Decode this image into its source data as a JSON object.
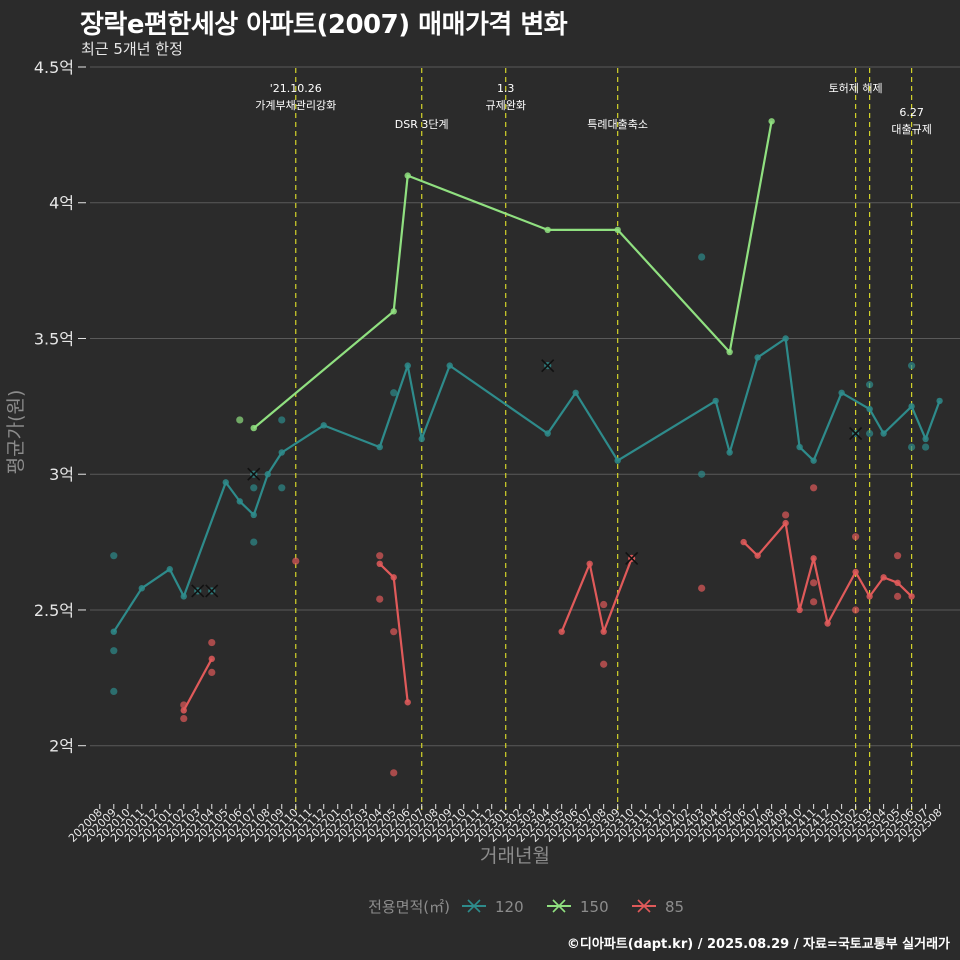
{
  "header": {
    "title": "장락e편한세상 아파트(2007) 매매가격 변화",
    "subtitle": "최근 5개년 한정"
  },
  "caption": "©디아파트(dapt.kr) / 2025.08.29 / 자료=국토교통부 실거래가",
  "colors": {
    "background": "#2b2b2b",
    "grid": "#5a5a5a",
    "vline": "#d4d42a",
    "s120": "#2e8b8b",
    "s150": "#90e080",
    "s85": "#e05a5a",
    "axis_text": "#e6e6e6",
    "axis_title": "#8c8c8c"
  },
  "chart_data": {
    "type": "line",
    "xlabel": "거래년월",
    "ylabel": "평균가(원)",
    "ylim": [
      1.8,
      4.5
    ],
    "yticks": [
      2,
      2.5,
      3,
      3.5,
      4,
      4.5
    ],
    "ytick_labels": [
      "2억",
      "2.5억",
      "3억",
      "3.5억",
      "4억",
      "4.5억"
    ],
    "categories": [
      "202008",
      "202009",
      "202010",
      "202011",
      "202012",
      "202101",
      "202102",
      "202103",
      "202104",
      "202105",
      "202106",
      "202107",
      "202108",
      "202109",
      "202110",
      "202111",
      "202112",
      "202201",
      "202202",
      "202203",
      "202204",
      "202205",
      "202206",
      "202207",
      "202208",
      "202209",
      "202210",
      "202211",
      "202212",
      "202301",
      "202302",
      "202303",
      "202304",
      "202305",
      "202306",
      "202307",
      "202308",
      "202309",
      "202310",
      "202311",
      "202312",
      "202401",
      "202402",
      "202403",
      "202404",
      "202405",
      "202406",
      "202407",
      "202408",
      "202409",
      "202410",
      "202411",
      "202412",
      "202501",
      "202502",
      "202503",
      "202504",
      "202505",
      "202506",
      "202507",
      "202508"
    ],
    "legend": {
      "title": "전용면적(㎡)",
      "items": [
        "120",
        "150",
        "85"
      ],
      "position": "bottom"
    },
    "series": [
      {
        "name": "120",
        "line": [
          [
            "202009",
            2.42
          ],
          [
            "202011",
            2.58
          ],
          [
            "202101",
            2.65
          ],
          [
            "202102",
            2.55
          ],
          [
            "202105",
            2.97
          ],
          [
            "202106",
            2.9
          ],
          [
            "202107",
            2.85
          ],
          [
            "202108",
            3.0
          ],
          [
            "202109",
            3.08
          ],
          [
            "202112",
            3.18
          ],
          [
            "202204",
            3.1
          ],
          [
            "202206",
            3.4
          ],
          [
            "202207",
            3.13
          ],
          [
            "202209",
            3.4
          ],
          [
            "202304",
            3.15
          ],
          [
            "202306",
            3.3
          ],
          [
            "202309",
            3.05
          ],
          [
            "202404",
            3.27
          ],
          [
            "202405",
            3.08
          ],
          [
            "202407",
            3.43
          ],
          [
            "202409",
            3.5
          ],
          [
            "202410",
            3.1
          ],
          [
            "202411",
            3.05
          ],
          [
            "202501",
            3.3
          ],
          [
            "202503",
            3.24
          ],
          [
            "202504",
            3.15
          ],
          [
            "202506",
            3.25
          ],
          [
            "202507",
            3.13
          ],
          [
            "202508",
            3.27
          ]
        ],
        "points": [
          [
            "202009",
            2.7
          ],
          [
            "202009",
            2.35
          ],
          [
            "202009",
            2.2
          ],
          [
            "202107",
            2.95
          ],
          [
            "202107",
            2.75
          ],
          [
            "202109",
            3.2
          ],
          [
            "202109",
            2.95
          ],
          [
            "202205",
            3.3
          ],
          [
            "202403",
            3.8
          ],
          [
            "202403",
            3.0
          ],
          [
            "202503",
            3.33
          ],
          [
            "202503",
            3.15
          ],
          [
            "202506",
            3.4
          ],
          [
            "202506",
            3.1
          ],
          [
            "202507",
            3.1
          ]
        ],
        "cancelled": [
          [
            "202103",
            2.57
          ],
          [
            "202104",
            2.57
          ],
          [
            "202107",
            3.0
          ],
          [
            "202304",
            3.4
          ],
          [
            "202502",
            3.15
          ]
        ]
      },
      {
        "name": "150",
        "line": [
          [
            "202107",
            3.17
          ],
          [
            "202205",
            3.6
          ],
          [
            "202206",
            4.1
          ],
          [
            "202304",
            3.9
          ],
          [
            "202309",
            3.9
          ],
          [
            "202405",
            3.45
          ],
          [
            "202408",
            4.3
          ]
        ],
        "points": [
          [
            "202106",
            3.2
          ]
        ],
        "cancelled": []
      },
      {
        "name": "85",
        "line": [
          [
            "202102",
            2.13
          ],
          [
            "202104",
            2.32
          ]
        ],
        "line2": [
          [
            "202204",
            2.67
          ],
          [
            "202205",
            2.62
          ],
          [
            "202206",
            2.16
          ]
        ],
        "line3": [
          [
            "202305",
            2.42
          ],
          [
            "202307",
            2.67
          ],
          [
            "202308",
            2.42
          ],
          [
            "202310",
            2.69
          ]
        ],
        "line4": [
          [
            "202406",
            2.75
          ],
          [
            "202407",
            2.7
          ],
          [
            "202409",
            2.82
          ],
          [
            "202410",
            2.5
          ],
          [
            "202411",
            2.69
          ],
          [
            "202412",
            2.45
          ],
          [
            "202502",
            2.64
          ],
          [
            "202503",
            2.55
          ],
          [
            "202504",
            2.62
          ],
          [
            "202505",
            2.6
          ],
          [
            "202506",
            2.55
          ]
        ],
        "points": [
          [
            "202102",
            2.15
          ],
          [
            "202102",
            2.1
          ],
          [
            "202104",
            2.38
          ],
          [
            "202104",
            2.27
          ],
          [
            "202110",
            2.68
          ],
          [
            "202204",
            2.7
          ],
          [
            "202204",
            2.54
          ],
          [
            "202205",
            2.42
          ],
          [
            "202205",
            1.9
          ],
          [
            "202308",
            2.52
          ],
          [
            "202308",
            2.3
          ],
          [
            "202403",
            2.58
          ],
          [
            "202409",
            2.85
          ],
          [
            "202411",
            2.95
          ],
          [
            "202411",
            2.6
          ],
          [
            "202411",
            2.53
          ],
          [
            "202502",
            2.77
          ],
          [
            "202502",
            2.5
          ],
          [
            "202505",
            2.7
          ],
          [
            "202505",
            2.55
          ]
        ],
        "cancelled": [
          [
            "202310",
            2.69
          ]
        ]
      }
    ],
    "annotations": [
      {
        "x": "202110",
        "lines": [
          "'21.10.26",
          "가계부채관리강화"
        ],
        "row": 0
      },
      {
        "x": "202207",
        "lines": [
          "DSR 3단계"
        ],
        "row": 1
      },
      {
        "x": "202301",
        "lines": [
          "1.3",
          "규제완화"
        ],
        "row": 0
      },
      {
        "x": "202309",
        "lines": [
          "특례대출축소"
        ],
        "row": 1
      },
      {
        "x": "202502",
        "lines": [
          "토허제 해제"
        ],
        "row": 0
      },
      {
        "x": "202503",
        "lines": [],
        "row": 0
      },
      {
        "x": "202506",
        "lines": [
          "6.27",
          "대출규제"
        ],
        "row": 2
      }
    ]
  }
}
